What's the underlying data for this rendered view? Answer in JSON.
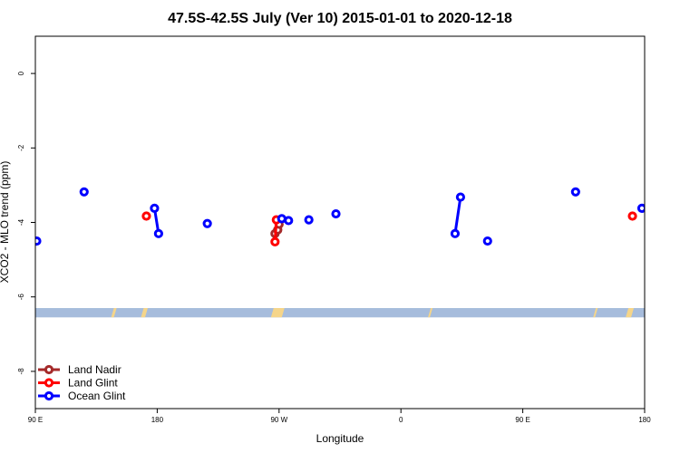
{
  "chart_data": {
    "type": "scatter",
    "title": "47.5S-42.5S July (Ver 10)   2015-01-01 to 2020-12-18",
    "xlabel": "Longitude",
    "ylabel": "XCO2 - MLO trend (ppm)",
    "xlim": [
      90,
      450
    ],
    "ylim": [
      -9,
      1
    ],
    "x_ticks": [
      {
        "value": 90,
        "label": "90 E"
      },
      {
        "value": 180,
        "label": "180"
      },
      {
        "value": 270,
        "label": "90 W"
      },
      {
        "value": 360,
        "label": "0"
      },
      {
        "value": 450,
        "label": "90 E"
      },
      {
        "value": 540,
        "label": "180"
      }
    ],
    "y_ticks": [
      {
        "value": 0,
        "label": "0"
      },
      {
        "value": -2,
        "label": "-2"
      },
      {
        "value": -4,
        "label": "-4"
      },
      {
        "value": -6,
        "label": "-6"
      },
      {
        "value": -8,
        "label": "-8"
      }
    ],
    "xlim_display": [
      90,
      540
    ],
    "series": [
      {
        "name": "Land Nadir",
        "color": "#a52a2a",
        "segments": [
          [
            {
              "x": 267,
              "y": -4.3
            },
            {
              "x": 269,
              "y": -4.2
            },
            {
              "x": 270,
              "y": -4.05
            }
          ]
        ]
      },
      {
        "name": "Land Glint",
        "color": "#ff0000",
        "segments": [
          [
            {
              "x": 172,
              "y": -3.83
            }
          ],
          [
            {
              "x": 267,
              "y": -4.52
            },
            {
              "x": 268,
              "y": -3.93
            }
          ],
          [
            {
              "x": 531,
              "y": -3.83
            }
          ]
        ]
      },
      {
        "name": "Ocean Glint",
        "color": "#0000ff",
        "segments": [
          [
            {
              "x": 91,
              "y": -4.5
            }
          ],
          [
            {
              "x": 126,
              "y": -3.18
            }
          ],
          [
            {
              "x": 178,
              "y": -3.62
            },
            {
              "x": 181,
              "y": -4.3
            }
          ],
          [
            {
              "x": 217,
              "y": -4.03
            }
          ],
          [
            {
              "x": 272,
              "y": -3.9
            }
          ],
          [
            {
              "x": 277,
              "y": -3.95
            }
          ],
          [
            {
              "x": 292,
              "y": -3.93
            }
          ],
          [
            {
              "x": 312,
              "y": -3.77
            }
          ],
          [
            {
              "x": 400,
              "y": -4.3
            },
            {
              "x": 404,
              "y": -3.32
            }
          ],
          [
            {
              "x": 424,
              "y": -4.5
            }
          ],
          [
            {
              "x": 489,
              "y": -3.18
            }
          ],
          [
            {
              "x": 538,
              "y": -3.62
            }
          ]
        ]
      }
    ],
    "land_ocean_band": {
      "y_range": [
        -6.55,
        -6.3
      ],
      "ocean_color": "#a6bcdc",
      "land_color": "#f5d58a",
      "land_patches": [
        {
          "x": [
            146,
            148
          ]
        },
        {
          "x": [
            168,
            171
          ]
        },
        {
          "x": [
            264,
            272
          ]
        },
        {
          "x": [
            380,
            381
          ]
        },
        {
          "x": [
            502,
            503
          ]
        },
        {
          "x": [
            526,
            530
          ]
        }
      ]
    },
    "legend": {
      "position": "bottom-left",
      "entries": [
        {
          "label": "Land Nadir",
          "color": "#a52a2a"
        },
        {
          "label": "Land Glint",
          "color": "#ff0000"
        },
        {
          "label": "Ocean Glint",
          "color": "#0000ff"
        }
      ]
    },
    "grid": false
  }
}
